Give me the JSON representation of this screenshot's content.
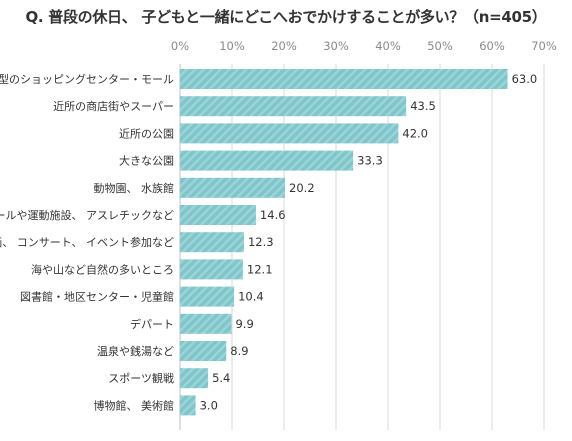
{
  "chart_data": {
    "type": "bar",
    "orientation": "horizontal",
    "title": "Q. 普段の休日、 子どもと一緒にどこへおでかけすることが多い？（n=405）",
    "categories": [
      "大型のショッピングセンター・モール",
      "近所の商店街やスーパー",
      "近所の公園",
      "大きな公園",
      "動物園、 水族館",
      "プールや運動施設、 アスレチックなど",
      "映画、 コンサート、 イベント参加など",
      "海や山など自然の多いところ",
      "図書館・地区センター・児童館",
      "デパート",
      "温泉や銭湯など",
      "スポーツ観戦",
      "博物館、 美術館"
    ],
    "values": [
      63.0,
      43.5,
      42.0,
      33.3,
      20.2,
      14.6,
      12.3,
      12.1,
      10.4,
      9.9,
      8.9,
      5.4,
      3.0
    ],
    "value_labels": [
      "63.0",
      "43.5",
      "42.0",
      "33.3",
      "20.2",
      "14.6",
      "12.3",
      "12.1",
      "10.4",
      "9.9",
      "8.9",
      "5.4",
      "3.0"
    ],
    "xlim": [
      0,
      70
    ],
    "xticks": [
      0,
      10,
      20,
      30,
      40,
      50,
      60,
      70
    ],
    "xtick_labels": [
      "0%",
      "10%",
      "20%",
      "30%",
      "40%",
      "50%",
      "60%",
      "70%"
    ],
    "axis_position": "top",
    "grid": true,
    "legend": "none",
    "colors": {
      "bar": "#7fc6cb",
      "bar_stripe": "#9dd4d8",
      "grid": "#d9d9d9",
      "axis": "#bfbfbf"
    }
  }
}
